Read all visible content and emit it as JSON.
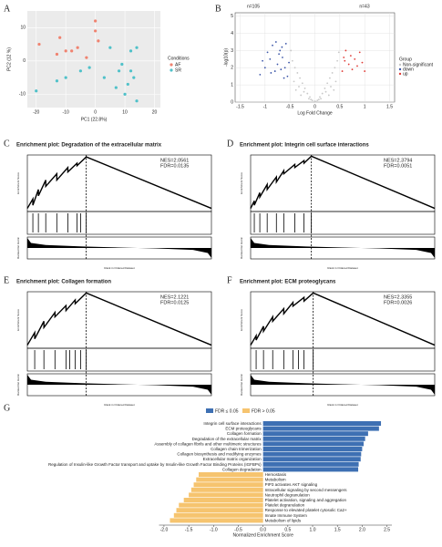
{
  "chart_data": [
    {
      "type": "scatter",
      "panel": "A",
      "xlabel": "PC1 (22.8%)",
      "ylabel": "PC2 (12 %)",
      "xlim": [
        -23,
        22
      ],
      "ylim": [
        -14,
        15
      ],
      "xticks": [
        -20,
        -10,
        0,
        10,
        20
      ],
      "yticks": [
        -10,
        0,
        10
      ],
      "legend_title": "Conditions",
      "series": [
        {
          "name": "AF",
          "color": "#f0826f",
          "x": [
            -19,
            -12,
            -10,
            -8,
            -6,
            -13,
            0,
            0,
            1,
            -3
          ],
          "values": [
            5,
            7,
            3,
            3,
            4,
            2,
            12,
            9,
            6,
            1
          ]
        },
        {
          "name": "SR",
          "color": "#4fc1c9",
          "x": [
            -20,
            -13,
            -10,
            -5,
            -2,
            3,
            5,
            7,
            8,
            9,
            10,
            11,
            12,
            13,
            14,
            14,
            12
          ],
          "values": [
            -9,
            -6,
            -5,
            -3,
            -2,
            -5,
            4,
            -8,
            -3,
            -1,
            -10,
            -7,
            3,
            -5,
            4,
            -12,
            -3
          ]
        }
      ]
    },
    {
      "type": "volcano",
      "panel": "B",
      "xlabel": "Log Fold Change",
      "ylabel": "-log10(p)",
      "xlim": [
        -1.6,
        1.6
      ],
      "ylim": [
        0,
        5.2
      ],
      "xticks": [
        -1.5,
        -1,
        -0.5,
        0,
        0.5,
        1,
        1.5
      ],
      "yticks": [
        0,
        1,
        2,
        3,
        4,
        5
      ],
      "grid": true,
      "annotations": [
        "n=105",
        "n=43"
      ],
      "legend_title": "Group",
      "series": [
        {
          "name": "Non-significant",
          "color": "#c8c8c8",
          "x": [
            -0.45,
            -0.4,
            -0.35,
            -0.3,
            -0.25,
            -0.2,
            -0.15,
            -0.1,
            -0.05,
            0,
            0.05,
            0.1,
            0.15,
            0.2,
            0.25,
            0.3,
            0.35,
            0.4,
            0.45,
            -0.42,
            -0.32,
            -0.22,
            -0.12,
            0.12,
            0.22,
            0.32,
            0.42,
            -0.38,
            0.38,
            -0.28,
            0.28,
            -0.48,
            0.48,
            0.02,
            -0.08,
            0.08
          ],
          "values": [
            2.4,
            2.0,
            1.7,
            1.4,
            1.1,
            0.8,
            0.5,
            0.3,
            0.1,
            0.05,
            0.1,
            0.3,
            0.5,
            0.8,
            1.1,
            1.4,
            1.7,
            2.0,
            2.4,
            1.2,
            0.9,
            0.6,
            0.2,
            0.2,
            0.6,
            0.9,
            1.2,
            0.7,
            0.7,
            0.4,
            0.4,
            3.0,
            2.9,
            0.02,
            0.15,
            0.15
          ]
        },
        {
          "name": "down",
          "color": "#3b55a8",
          "x": [
            -0.55,
            -0.6,
            -0.65,
            -0.7,
            -0.75,
            -0.8,
            -0.85,
            -0.9,
            -1.0,
            -1.1,
            -0.58,
            -0.62,
            -0.68,
            -0.72,
            -0.78,
            -0.95,
            -0.52,
            -0.66,
            -0.88,
            -1.05
          ],
          "values": [
            1.5,
            2.0,
            2.6,
            3.0,
            2.2,
            1.8,
            3.3,
            2.5,
            2.0,
            1.6,
            3.4,
            1.4,
            1.9,
            2.8,
            3.5,
            2.9,
            2.3,
            3.2,
            1.7,
            2.4
          ]
        },
        {
          "name": "up",
          "color": "#e03b36",
          "x": [
            0.55,
            0.6,
            0.62,
            0.68,
            0.72,
            0.75,
            0.8,
            0.85,
            0.9,
            0.95,
            1.0,
            0.58
          ],
          "values": [
            1.8,
            2.4,
            3.0,
            2.2,
            2.7,
            1.9,
            2.5,
            2.1,
            2.9,
            2.3,
            1.8,
            2.6
          ]
        }
      ]
    },
    {
      "type": "gsea",
      "panel": "C",
      "title": "Enrichment plot: Degradation of the extracellular matrix",
      "stats": [
        "NES=2.0561",
        "FDR=0.0135"
      ],
      "ylabel": "Enrichment Score",
      "metric_label": "Ranked list metric",
      "xlabel": "Rank in Ordered Dataset",
      "xlim": [
        0,
        100
      ],
      "ylim": [
        -0.05,
        0.85
      ],
      "x": [
        0,
        3,
        3,
        6,
        6,
        10,
        10,
        16,
        16,
        22,
        22,
        27,
        27,
        32,
        100
      ],
      "values": [
        0,
        0.15,
        0.05,
        0.3,
        0.2,
        0.45,
        0.35,
        0.55,
        0.45,
        0.65,
        0.58,
        0.72,
        0.68,
        0.82,
        0
      ],
      "hits": [
        3,
        6,
        10,
        16,
        22,
        27,
        29,
        32
      ],
      "metric_x": [
        0,
        2,
        10,
        30,
        50,
        70,
        90,
        98,
        100
      ],
      "metric": [
        1.0,
        0.5,
        0.3,
        0.15,
        0.05,
        -0.05,
        -0.2,
        -0.5,
        -1.0
      ],
      "metric_lim": [
        -1.1,
        1.1
      ]
    },
    {
      "type": "gsea",
      "panel": "D",
      "title": "Enrichment plot: Integrin cell surface interactions",
      "stats": [
        "NES=2.3794",
        "FDR=0.0051"
      ],
      "ylabel": "Enrichment Score",
      "metric_label": "Ranked list metric",
      "xlabel": "Rank in Ordered Dataset",
      "xlim": [
        0,
        100
      ],
      "ylim": [
        -0.05,
        0.85
      ],
      "x": [
        0,
        2,
        2,
        5,
        5,
        9,
        9,
        14,
        14,
        18,
        18,
        24,
        24,
        29,
        29,
        33,
        100
      ],
      "values": [
        0,
        0.12,
        0.05,
        0.25,
        0.18,
        0.38,
        0.3,
        0.5,
        0.42,
        0.6,
        0.55,
        0.7,
        0.65,
        0.76,
        0.72,
        0.83,
        0
      ],
      "hits": [
        2,
        5,
        9,
        14,
        18,
        24,
        29,
        33
      ],
      "metric_x": [
        0,
        2,
        10,
        30,
        50,
        70,
        90,
        98,
        100
      ],
      "metric": [
        1.0,
        0.5,
        0.3,
        0.15,
        0.05,
        -0.05,
        -0.2,
        -0.5,
        -1.0
      ],
      "metric_lim": [
        -1.1,
        1.1
      ]
    },
    {
      "type": "gsea",
      "panel": "E",
      "title": "Enrichment plot: Collagen formation",
      "stats": [
        "NES=2.1221",
        "FDR=0.0125"
      ],
      "ylabel": "Enrichment Score",
      "metric_label": "Ranked list metric",
      "xlabel": "Rank in Ordered Dataset",
      "xlim": [
        0,
        100
      ],
      "ylim": [
        -0.05,
        0.85
      ],
      "x": [
        0,
        4,
        4,
        9,
        9,
        15,
        15,
        21,
        21,
        26,
        26,
        32,
        100
      ],
      "values": [
        0,
        0.2,
        0.1,
        0.38,
        0.28,
        0.52,
        0.45,
        0.63,
        0.55,
        0.72,
        0.66,
        0.83,
        0
      ],
      "hits": [
        4,
        9,
        15,
        21,
        23,
        26,
        29,
        32
      ],
      "metric_x": [
        0,
        2,
        10,
        30,
        50,
        70,
        90,
        98,
        100
      ],
      "metric": [
        1.0,
        0.5,
        0.3,
        0.15,
        0.05,
        -0.05,
        -0.2,
        -0.5,
        -1.0
      ],
      "metric_lim": [
        -1.1,
        1.1
      ]
    },
    {
      "type": "gsea",
      "panel": "F",
      "title": "Enrichment plot: ECM proteoglycans",
      "stats": [
        "NES=2.3355",
        "FDR=0.0026"
      ],
      "ylabel": "Enrichment Score",
      "metric_label": "Ranked list metric",
      "xlabel": "Rank in Ordered Dataset",
      "xlim": [
        0,
        100
      ],
      "ylim": [
        -0.05,
        0.85
      ],
      "x": [
        0,
        3,
        3,
        7,
        7,
        12,
        12,
        18,
        18,
        23,
        23,
        29,
        29,
        34,
        100
      ],
      "values": [
        0,
        0.15,
        0.08,
        0.3,
        0.22,
        0.45,
        0.38,
        0.58,
        0.5,
        0.68,
        0.62,
        0.76,
        0.7,
        0.83,
        0
      ],
      "hits": [
        3,
        7,
        12,
        18,
        23,
        26,
        29,
        34
      ],
      "metric_x": [
        0,
        2,
        10,
        30,
        50,
        70,
        90,
        98,
        100
      ],
      "metric": [
        1.0,
        0.5,
        0.3,
        0.15,
        0.05,
        -0.05,
        -0.2,
        -0.5,
        -1.0
      ],
      "metric_lim": [
        -1.1,
        1.1
      ]
    },
    {
      "type": "barh",
      "panel": "G",
      "xlabel": "Normalized Enrichment Score",
      "xlim": [
        -2.1,
        2.6
      ],
      "xticks": [
        {
          "value": -2,
          "label": "-2.0"
        },
        {
          "value": -1.5,
          "label": "-1.5"
        },
        {
          "value": -1,
          "label": "-1.0"
        },
        {
          "value": -0.5,
          "label": "-0.5"
        },
        {
          "value": 0,
          "label": "0.0"
        },
        {
          "value": 0.5,
          "label": "0.5"
        },
        {
          "value": 1,
          "label": "1.0"
        },
        {
          "value": 1.5,
          "label": "1.5"
        },
        {
          "value": 2,
          "label": "2.0"
        },
        {
          "value": 2.5,
          "label": "2.5"
        }
      ],
      "series": [
        {
          "name": "FDR ≤ 0.05",
          "color": "#3e70b3",
          "categories": [
            "Integrin cell surface interactions",
            "ECM proteoglycans",
            "Collagen formation",
            "Degradation of the extracellular matrix",
            "Assembly of collagen fibrils and other multimeric structures",
            "Collagen chain trimerization",
            "Collagen biosynthesis and modifying enzymes",
            "Extracellular matrix organization",
            "Regulation of Insulin-like Growth Factor  transport and uptake by Insulin-like Growth Factor Binding Proteins (IGFBPs)",
            "Collagen degradation"
          ],
          "values": [
            2.38,
            2.34,
            2.12,
            2.06,
            2.03,
            2.0,
            1.98,
            1.97,
            1.93,
            1.92
          ]
        },
        {
          "name": "FDR > 0.05",
          "color": "#f6c46f",
          "categories": [
            "Hemostasis",
            "Metabolism",
            "PIP3 activates AKT signaling",
            "Intracellular signaling by second messengers",
            "Neutrophil degranulation",
            "Platelet activation, signaling and aggregation",
            "Platelet degranulation",
            "Response to elevated platelet cytosolic Ca2+",
            "Innate Immune System",
            "Metabolism of lipids"
          ],
          "values": [
            -1.3,
            -1.35,
            -1.4,
            -1.45,
            -1.5,
            -1.6,
            -1.7,
            -1.75,
            -1.8,
            -1.88
          ]
        }
      ]
    }
  ]
}
